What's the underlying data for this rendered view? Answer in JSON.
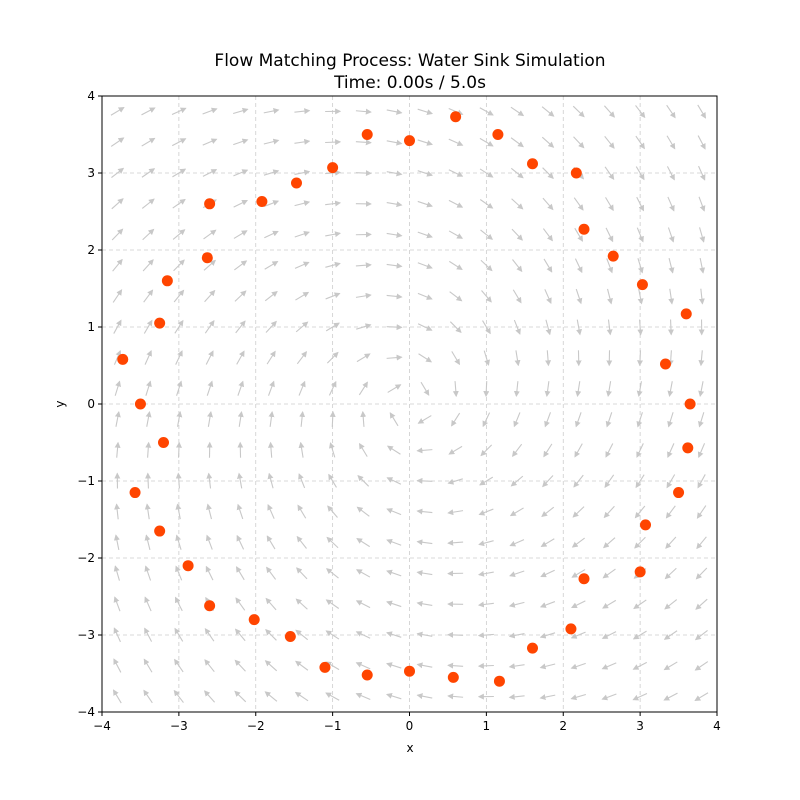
{
  "chart_data": {
    "type": "scatter",
    "title": "Flow Matching Process: Water Sink Simulation",
    "subtitle": "Time: 0.00s / 5.0s",
    "xlabel": "x",
    "ylabel": "y",
    "xlim": [
      -4,
      4
    ],
    "ylim": [
      -4,
      4
    ],
    "xticks": [
      -4,
      -3,
      -2,
      -1,
      0,
      1,
      2,
      3,
      4
    ],
    "yticks": [
      -4,
      -3,
      -2,
      -1,
      0,
      1,
      2,
      3,
      4
    ],
    "xtick_labels": [
      "−4",
      "−3",
      "−2",
      "−1",
      "0",
      "1",
      "2",
      "3",
      "4"
    ],
    "ytick_labels": [
      "−4",
      "−3",
      "−2",
      "−1",
      "0",
      "1",
      "2",
      "3",
      "4"
    ],
    "grid": true,
    "grid_style": "dashed",
    "colors": {
      "points": "#ff4500",
      "vector_field": "#c8c8c8",
      "grid": "#cccccc"
    },
    "vector_field": {
      "grid_range": [
        -3.8,
        3.8
      ],
      "grid_count": 20,
      "description_free": true
    },
    "series": [
      {
        "x": [
          0.6,
          1.15,
          1.6,
          2.17,
          2.27,
          2.65,
          3.03,
          3.6,
          3.33,
          3.65,
          3.62,
          3.5,
          3.07,
          3.0,
          2.27,
          2.1,
          1.6,
          1.17,
          0.57,
          0.0,
          -0.55,
          -1.1,
          -1.55,
          -2.02,
          -2.6,
          -2.88,
          -3.25,
          -3.57,
          -3.2,
          -3.5,
          -3.73,
          -3.25,
          -3.15,
          -2.63,
          -2.6,
          -1.92,
          -1.47,
          -1.0,
          -0.55,
          0.0
        ],
        "y": [
          3.73,
          3.5,
          3.12,
          3.0,
          2.27,
          1.92,
          1.55,
          1.17,
          0.52,
          0.0,
          -0.57,
          -1.15,
          -1.57,
          -2.18,
          -2.27,
          -2.92,
          -3.17,
          -3.6,
          -3.55,
          -3.47,
          -3.52,
          -3.42,
          -3.02,
          -2.8,
          -2.62,
          -2.1,
          -1.65,
          -1.15,
          -0.5,
          0.0,
          0.58,
          1.05,
          1.6,
          1.9,
          2.6,
          2.63,
          2.87,
          3.07,
          3.5,
          3.42
        ]
      }
    ]
  }
}
